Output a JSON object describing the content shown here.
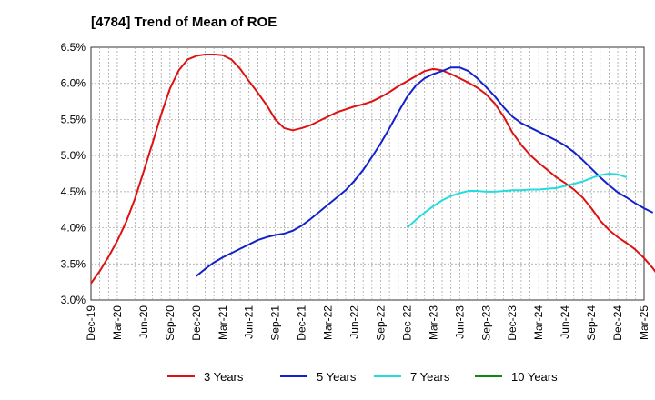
{
  "chart_data": {
    "type": "line",
    "title": "[4784]  Trend of Mean of ROE",
    "xlabel": "",
    "ylabel": "",
    "ylim": [
      3.0,
      6.5
    ],
    "yticks": [
      "3.0%",
      "3.5%",
      "4.0%",
      "4.5%",
      "5.0%",
      "5.5%",
      "6.0%",
      "6.5%"
    ],
    "x_ticks": [
      "Dec-19",
      "Mar-20",
      "Jun-20",
      "Sep-20",
      "Dec-20",
      "Mar-21",
      "Jun-21",
      "Sep-21",
      "Dec-21",
      "Mar-22",
      "Jun-22",
      "Sep-22",
      "Dec-22",
      "Mar-23",
      "Jun-23",
      "Sep-23",
      "Dec-23",
      "Mar-24",
      "Jun-24",
      "Sep-24",
      "Dec-24",
      "Mar-25"
    ],
    "grid": true,
    "legend_position": "bottom",
    "series": [
      {
        "name": "3 Years",
        "color": "#dd1111",
        "values": [
          3.23,
          3.4,
          3.6,
          3.82,
          4.08,
          4.4,
          4.78,
          5.17,
          5.57,
          5.93,
          6.18,
          6.33,
          6.38,
          6.4,
          6.4,
          6.39,
          6.33,
          6.2,
          6.03,
          5.87,
          5.7,
          5.5,
          5.38,
          5.35,
          5.38,
          5.42,
          5.48,
          5.54,
          5.6,
          5.64,
          5.68,
          5.71,
          5.75,
          5.81,
          5.88,
          5.96,
          6.03,
          6.1,
          6.17,
          6.2,
          6.18,
          6.13,
          6.07,
          6.01,
          5.94,
          5.85,
          5.72,
          5.54,
          5.32,
          5.15,
          5.01,
          4.9,
          4.8,
          4.7,
          4.62,
          4.53,
          4.42,
          4.27,
          4.1,
          3.97,
          3.87,
          3.79,
          3.7,
          3.58,
          3.44,
          3.27
        ]
      },
      {
        "name": "5 Years",
        "color": "#1122cc",
        "values": [
          null,
          null,
          null,
          null,
          null,
          null,
          null,
          null,
          null,
          null,
          null,
          null,
          3.33,
          3.43,
          3.52,
          3.59,
          3.65,
          3.71,
          3.77,
          3.83,
          3.87,
          3.9,
          3.92,
          3.96,
          4.03,
          4.12,
          4.22,
          4.32,
          4.42,
          4.52,
          4.65,
          4.8,
          4.98,
          5.17,
          5.38,
          5.6,
          5.81,
          5.97,
          6.07,
          6.13,
          6.17,
          6.22,
          6.22,
          6.17,
          6.07,
          5.95,
          5.82,
          5.67,
          5.54,
          5.45,
          5.39,
          5.33,
          5.27,
          5.21,
          5.14,
          5.05,
          4.94,
          4.82,
          4.7,
          4.59,
          4.49,
          4.42,
          4.34,
          4.27,
          4.21
        ]
      },
      {
        "name": "7 Years",
        "color": "#22dddd",
        "values": [
          null,
          null,
          null,
          null,
          null,
          null,
          null,
          null,
          null,
          null,
          null,
          null,
          null,
          null,
          null,
          null,
          null,
          null,
          null,
          null,
          null,
          null,
          null,
          null,
          null,
          null,
          null,
          null,
          null,
          null,
          null,
          null,
          null,
          null,
          null,
          null,
          4.0,
          4.11,
          4.21,
          4.3,
          4.38,
          4.44,
          4.48,
          4.51,
          4.51,
          4.5,
          4.5,
          4.51,
          4.52,
          4.52,
          4.53,
          4.53,
          4.54,
          4.55,
          4.58,
          4.61,
          4.64,
          4.69,
          4.73,
          4.75,
          4.74,
          4.7
        ]
      },
      {
        "name": "10 Years",
        "color": "#118811",
        "values": []
      }
    ]
  }
}
